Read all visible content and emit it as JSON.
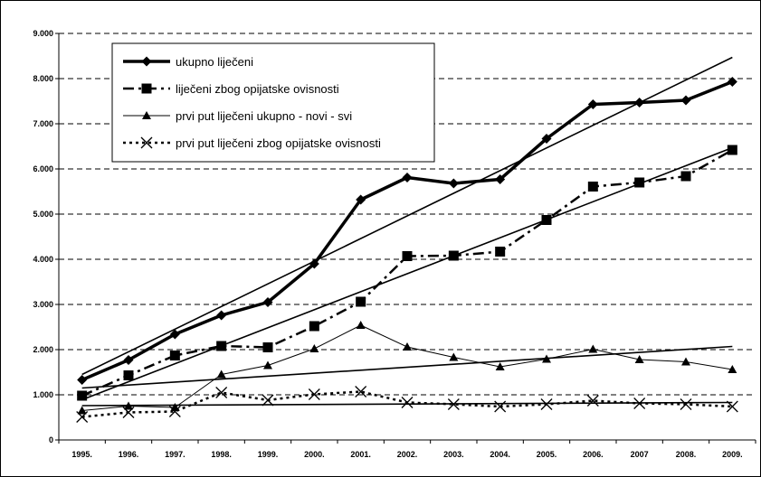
{
  "chart_data": {
    "type": "line",
    "title": "",
    "xlabel": "",
    "ylabel": "",
    "categories": [
      "1995.",
      "1996.",
      "1997.",
      "1998.",
      "1999.",
      "2000.",
      "2001.",
      "2002.",
      "2003.",
      "2004.",
      "2005.",
      "2006.",
      "2007",
      "2008.",
      "2009."
    ],
    "ylim": [
      0,
      9000
    ],
    "yticks": [
      0,
      1000,
      2000,
      3000,
      4000,
      5000,
      6000,
      7000,
      8000,
      9000
    ],
    "ytick_labels": [
      "0",
      "1.000",
      "2.000",
      "3.000",
      "4.000",
      "5.000",
      "6.000",
      "7.000",
      "8.000",
      "9.000"
    ],
    "grid": "horizontal dashed",
    "legend_position": "top-left",
    "series": [
      {
        "name": "ukupno liječeni",
        "style": "thick-solid",
        "marker": "diamond",
        "values": [
          1330,
          1770,
          2340,
          2760,
          3050,
          3900,
          5320,
          5810,
          5680,
          5770,
          6670,
          7430,
          7470,
          7520,
          7930
        ],
        "trendline": [
          1450,
          8470
        ]
      },
      {
        "name": "liječeni zbog opijatske ovisnosti",
        "style": "thick-dash-dot",
        "marker": "square",
        "values": [
          980,
          1430,
          1870,
          2080,
          2050,
          2520,
          3060,
          4070,
          4080,
          4170,
          4870,
          5610,
          5700,
          5840,
          6420
        ],
        "trendline": [
          890,
          6470
        ]
      },
      {
        "name": "prvi put liječeni ukupno - novi - svi",
        "style": "thin-solid",
        "marker": "triangle",
        "values": [
          650,
          750,
          720,
          1450,
          1650,
          2020,
          2540,
          2060,
          1830,
          1620,
          1790,
          2010,
          1780,
          1730,
          1560
        ],
        "trendline": [
          1150,
          2070
        ]
      },
      {
        "name": "prvi put liječeni zbog opijatske ovisnosti",
        "style": "dotted",
        "marker": "x",
        "values": [
          510,
          610,
          630,
          1050,
          880,
          1010,
          1070,
          830,
          790,
          740,
          790,
          870,
          810,
          790,
          740
        ],
        "trendline": [
          760,
          830
        ]
      }
    ]
  }
}
